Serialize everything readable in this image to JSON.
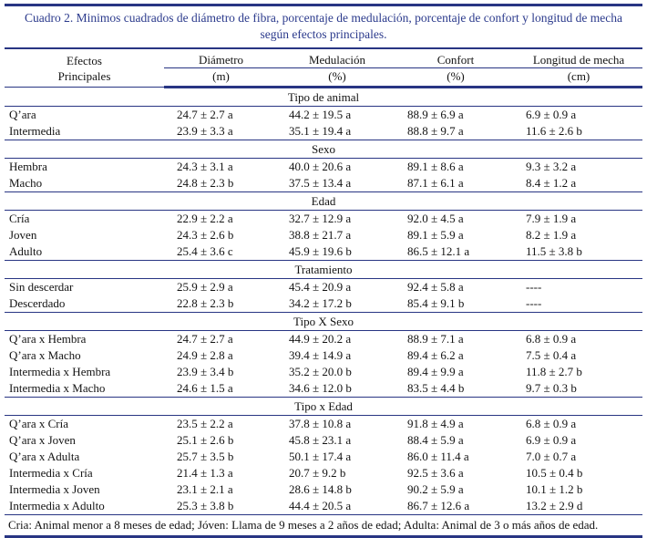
{
  "colors": {
    "accent_navy": "#283583",
    "title_blue": "#2b3a8c",
    "text": "#131313",
    "background": "#ffffff"
  },
  "caption": "Cuadro 2. Minimos cuadrados de diámetro de fibra, porcentaje de medulación, porcentaje de confort y longitud de mecha según efectos principales.",
  "table": {
    "header": {
      "col1": "Efectos\nPrincipales",
      "columns": [
        {
          "label": "Diámetro",
          "unit": "(m)"
        },
        {
          "label": "Medulación",
          "unit": "(%)"
        },
        {
          "label": "Confort",
          "unit": "(%)"
        },
        {
          "label": "Longitud de mecha",
          "unit": "(cm)"
        }
      ]
    },
    "sections": [
      {
        "name": "Tipo de animal",
        "rows": [
          {
            "label": "Q’ara",
            "values": [
              "24.7 ± 2.7 a",
              "44.2 ± 19.5 a",
              "88.9 ± 6.9 a",
              "6.9 ± 0.9 a"
            ]
          },
          {
            "label": "Intermedia",
            "values": [
              "23.9 ± 3.3 a",
              "35.1 ± 19.4 a",
              "88.8 ± 9.7 a",
              "11.6 ± 2.6 b"
            ]
          }
        ]
      },
      {
        "name": "Sexo",
        "rows": [
          {
            "label": "Hembra",
            "values": [
              "24.3 ± 3.1 a",
              "40.0 ± 20.6 a",
              "89.1 ± 8.6 a",
              "9.3 ± 3.2 a"
            ]
          },
          {
            "label": "Macho",
            "values": [
              "24.8 ± 2.3 b",
              "37.5 ± 13.4 a",
              "87.1 ± 6.1 a",
              "8.4 ± 1.2 a"
            ]
          }
        ]
      },
      {
        "name": "Edad",
        "rows": [
          {
            "label": "Cría",
            "values": [
              "22.9 ± 2.2 a",
              "32.7 ± 12.9 a",
              "92.0 ± 4.5 a",
              "7.9 ± 1.9 a"
            ]
          },
          {
            "label": "Joven",
            "values": [
              "24.3 ± 2.6 b",
              "38.8 ± 21.7 a",
              "89.1 ± 5.9 a",
              "8.2 ± 1.9 a"
            ]
          },
          {
            "label": "Adulto",
            "values": [
              "25.4 ± 3.6 c",
              "45.9 ± 19.6 b",
              "86.5 ± 12.1 a",
              "11.5 ± 3.8 b"
            ]
          }
        ]
      },
      {
        "name": "Tratamiento",
        "rows": [
          {
            "label": "Sin descerdar",
            "values": [
              "25.9 ± 2.9 a",
              "45.4 ± 20.9 a",
              "92.4 ± 5.8 a",
              "----"
            ]
          },
          {
            "label": "Descerdado",
            "values": [
              "22.8 ± 2.3 b",
              "34.2 ± 17.2 b",
              "85.4 ± 9.1 b",
              "----"
            ]
          }
        ]
      },
      {
        "name": "Tipo X Sexo",
        "rows": [
          {
            "label": "Q’ara x Hembra",
            "values": [
              "24.7 ± 2.7 a",
              "44.9 ± 20.2 a",
              "88.9 ± 7.1 a",
              "6.8 ± 0.9 a"
            ]
          },
          {
            "label": "Q’ara x Macho",
            "values": [
              "24.9 ± 2.8 a",
              "39.4 ± 14.9 a",
              "89.4 ± 6.2 a",
              "7.5 ± 0.4 a"
            ]
          },
          {
            "label": "Intermedia x Hembra",
            "values": [
              "23.9 ± 3.4 b",
              "35.2 ± 20.0 b",
              "89.4 ± 9.9 a",
              "11.8 ± 2.7 b"
            ]
          },
          {
            "label": "Intermedia x Macho",
            "values": [
              "24.6 ± 1.5 a",
              "34.6 ± 12.0 b",
              "83.5 ± 4.4 b",
              "9.7 ± 0.3 b"
            ]
          }
        ]
      },
      {
        "name": "Tipo x Edad",
        "rows": [
          {
            "label": "Q’ara x Cría",
            "values": [
              "23.5 ± 2.2 a",
              "37.8 ± 10.8 a",
              "91.8 ± 4.9 a",
              "6.8 ± 0.9 a"
            ]
          },
          {
            "label": "Q’ara x Joven",
            "values": [
              "25.1 ± 2.6 b",
              "45.8 ± 23.1 a",
              "88.4 ± 5.9 a",
              "6.9 ± 0.9 a"
            ]
          },
          {
            "label": "Q’ara x Adulta",
            "values": [
              "25.7 ± 3.5 b",
              "50.1 ± 17.4 a",
              "86.0 ± 11.4 a",
              "7.0 ± 0.7 a"
            ]
          },
          {
            "label": "Intermedia x Cría",
            "values": [
              "21.4 ± 1.3 a",
              "20.7 ± 9.2 b",
              "92.5 ± 3.6 a",
              "10.5 ± 0.4 b"
            ]
          },
          {
            "label": "Intermedia x Joven",
            "values": [
              "23.1 ± 2.1 a",
              "28.6 ± 14.8 b",
              "90.2 ± 5.9 a",
              "10.1 ± 1.2 b"
            ]
          },
          {
            "label": "Intermedia x Adulto",
            "values": [
              "25.3 ± 3.8 b",
              "44.4 ± 20.5 a",
              "86.7 ± 12.6 a",
              "13.2 ± 2.9 d"
            ]
          }
        ]
      }
    ],
    "footnote": "Cria: Animal menor a 8 meses de edad; Jóven: Llama de 9 meses a 2 años de edad; Adulta: Animal de 3 o más años de edad."
  }
}
